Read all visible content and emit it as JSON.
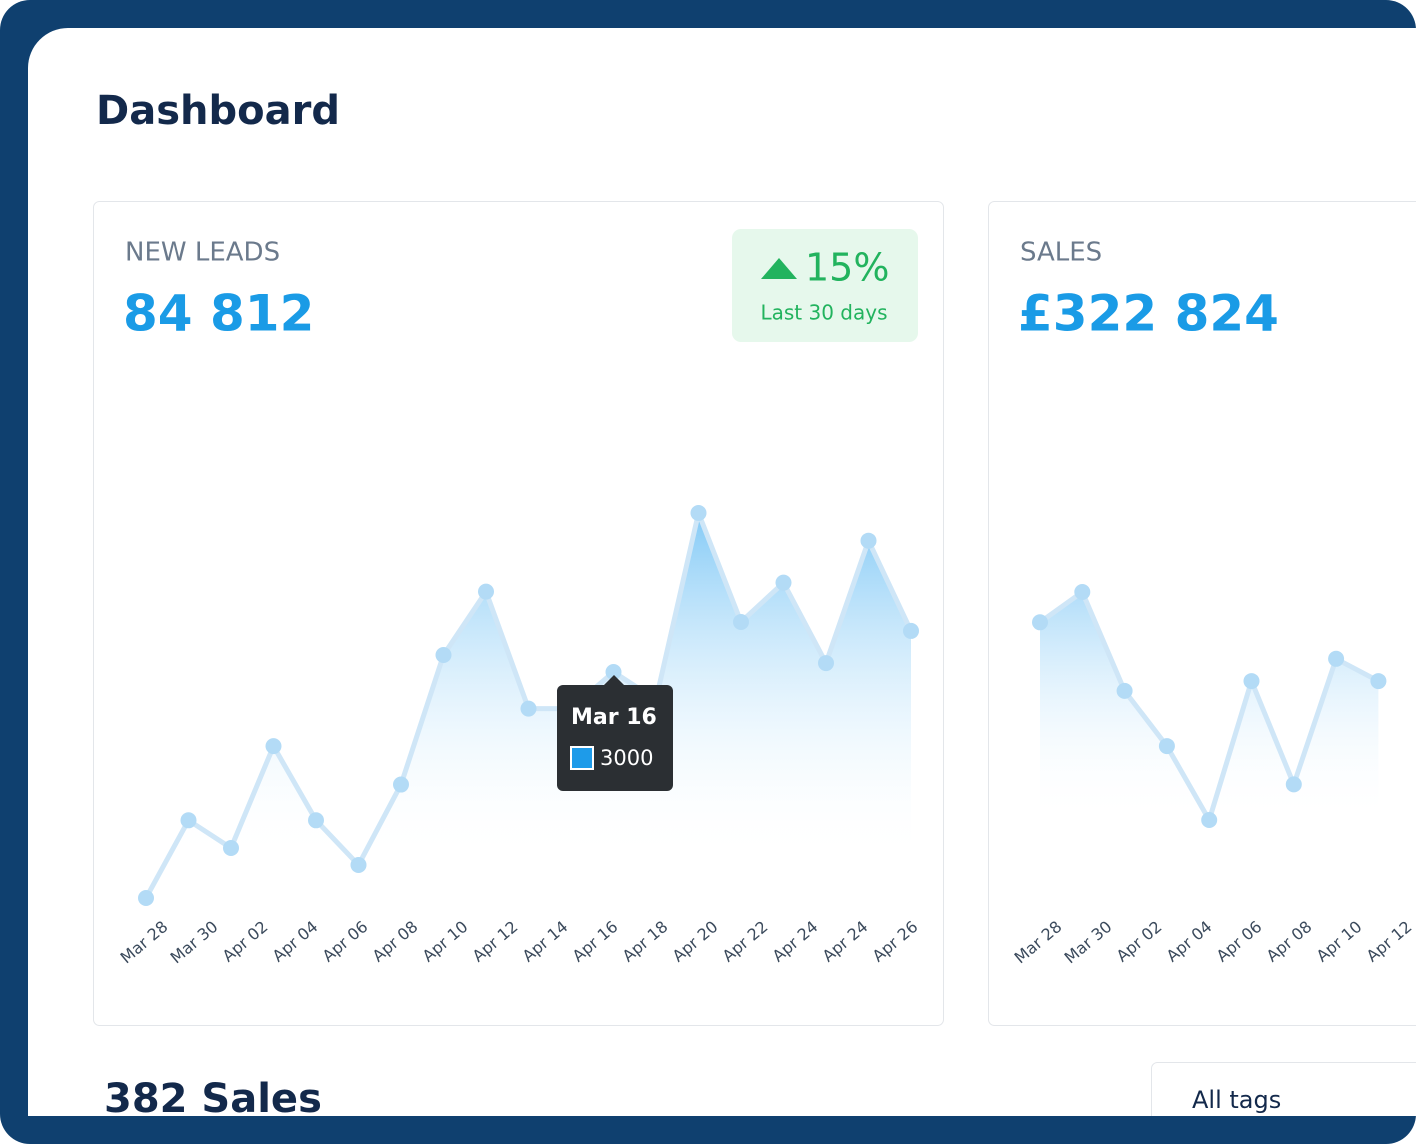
{
  "header": {
    "title": "Dashboard"
  },
  "cards": [
    {
      "label": "NEW LEADS",
      "value": "84 812",
      "badge": {
        "change": "15%",
        "period": "Last 30 days"
      }
    },
    {
      "label": "SALES",
      "value": "£322 824"
    }
  ],
  "chart_data": [
    {
      "type": "area",
      "color": "#1e9be9",
      "x_labels": [
        "Mar 28",
        "Mar 30",
        "Apr 02",
        "Apr 04",
        "Apr 06",
        "Apr 08",
        "Apr 10",
        "Apr 12",
        "Apr 14",
        "Apr 16",
        "Apr 18",
        "Apr 20",
        "Apr 22",
        "Apr 24",
        "Apr 24",
        "Apr 26"
      ],
      "values": [
        470,
        1340,
        1030,
        2170,
        1340,
        840,
        1740,
        3190,
        3900,
        2590,
        2590,
        3000,
        2690,
        4780,
        3560,
        4000,
        3100,
        4470,
        3460
      ],
      "tooltip_label": "Mar 16"
    },
    {
      "type": "area",
      "color": "#1e9be9",
      "x_labels": [
        "Mar 28",
        "Mar 30",
        "Apr 02",
        "Apr 04",
        "Apr 06",
        "Apr 08",
        "Apr 10",
        "Apr 12"
      ],
      "values": [
        3560,
        3900,
        2790,
        2170,
        1340,
        2900,
        1740,
        3150,
        2900
      ]
    }
  ],
  "footer": {
    "title": "382 Sales",
    "filter": "All tags"
  }
}
